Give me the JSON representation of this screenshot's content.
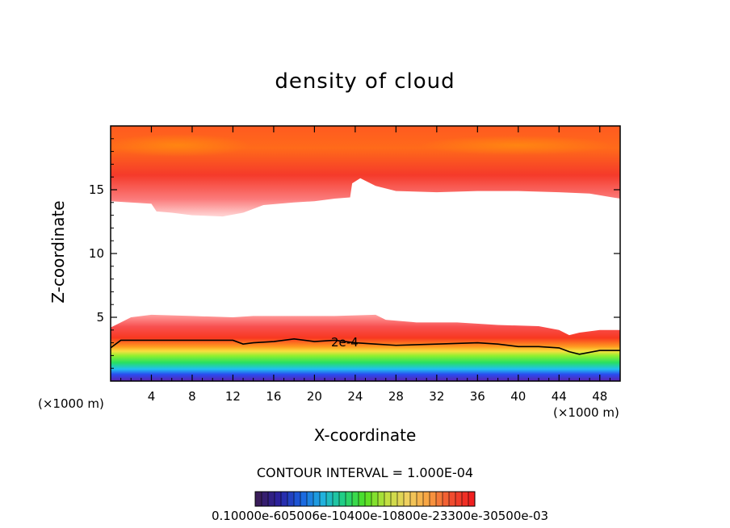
{
  "chart_data": {
    "type": "heatmap",
    "title": "density of cloud",
    "xlabel": "X-coordinate",
    "ylabel": "Z-coordinate",
    "x_unit_left": "(×1000 m)",
    "x_unit_right": "(×1000 m)",
    "xlim": [
      0,
      50
    ],
    "ylim": [
      0,
      20
    ],
    "x_ticks": [
      4,
      8,
      12,
      16,
      20,
      24,
      28,
      32,
      36,
      40,
      44,
      48
    ],
    "y_ticks": [
      5,
      10,
      15
    ],
    "contour_label": "2e-4",
    "contour_interval_text": "CONTOUR INTERVAL = 1.000E-04",
    "colorbar_text": "0.10000e-605006e-10400e-10800e-23300e-30500e-03",
    "colorbar_colors": [
      "#3a1d5a",
      "#2a20a0",
      "#1a60e0",
      "#20b0e0",
      "#20d080",
      "#50e020",
      "#c0e040",
      "#f0d060",
      "#f8a040",
      "#f05030",
      "#f02020"
    ],
    "colors": {
      "upper_dark": "#ff6a1a",
      "upper_red": "#f53a2a",
      "upper_pink": "#fb6b6b",
      "upper_light": "#ffb0b0",
      "lower_purple": "#5a22b0",
      "lower_blue": "#2a4cf0",
      "lower_cyan": "#20c0f0",
      "lower_green": "#28e060",
      "lower_lime": "#90f030",
      "lower_yellow": "#f8e040",
      "lower_orange": "#ff9a20",
      "lower_red": "#f83820",
      "lower_pink": "#ffa0a0"
    },
    "upper_cloud_base": [
      [
        0,
        14.1
      ],
      [
        4,
        13.9
      ],
      [
        4.5,
        13.3
      ],
      [
        6,
        13.2
      ],
      [
        8,
        13.0
      ],
      [
        11,
        12.9
      ],
      [
        13,
        13.2
      ],
      [
        15,
        13.8
      ],
      [
        18,
        14.0
      ],
      [
        20,
        14.1
      ],
      [
        22,
        14.3
      ],
      [
        23.5,
        14.4
      ],
      [
        23.7,
        15.5
      ],
      [
        24.5,
        15.9
      ],
      [
        26,
        15.3
      ],
      [
        28,
        14.9
      ],
      [
        32,
        14.8
      ],
      [
        36,
        14.9
      ],
      [
        40,
        14.9
      ],
      [
        44,
        14.8
      ],
      [
        47,
        14.7
      ],
      [
        50,
        14.3
      ]
    ],
    "lower_cloud_top": [
      [
        0,
        4.2
      ],
      [
        1,
        4.6
      ],
      [
        2,
        5.0
      ],
      [
        4,
        5.2
      ],
      [
        8,
        5.1
      ],
      [
        12,
        5.0
      ],
      [
        14,
        5.1
      ],
      [
        18,
        5.1
      ],
      [
        22,
        5.1
      ],
      [
        26,
        5.2
      ],
      [
        27,
        4.8
      ],
      [
        30,
        4.6
      ],
      [
        34,
        4.6
      ],
      [
        38,
        4.4
      ],
      [
        42,
        4.3
      ],
      [
        44,
        4.0
      ],
      [
        45,
        3.6
      ],
      [
        46,
        3.8
      ],
      [
        48,
        4.0
      ],
      [
        50,
        4.0
      ]
    ],
    "contour_2e4": [
      [
        0,
        2.6
      ],
      [
        1,
        3.2
      ],
      [
        4,
        3.2
      ],
      [
        8,
        3.2
      ],
      [
        12,
        3.2
      ],
      [
        13,
        2.9
      ],
      [
        14,
        3.0
      ],
      [
        16,
        3.1
      ],
      [
        18,
        3.3
      ],
      [
        20,
        3.1
      ],
      [
        22,
        3.2
      ],
      [
        24,
        3.0
      ],
      [
        26,
        2.9
      ],
      [
        28,
        2.8
      ],
      [
        32,
        2.9
      ],
      [
        36,
        3.0
      ],
      [
        38,
        2.9
      ],
      [
        40,
        2.7
      ],
      [
        42,
        2.7
      ],
      [
        44,
        2.6
      ],
      [
        45,
        2.3
      ],
      [
        46,
        2.1
      ],
      [
        48,
        2.4
      ],
      [
        50,
        2.4
      ]
    ]
  }
}
